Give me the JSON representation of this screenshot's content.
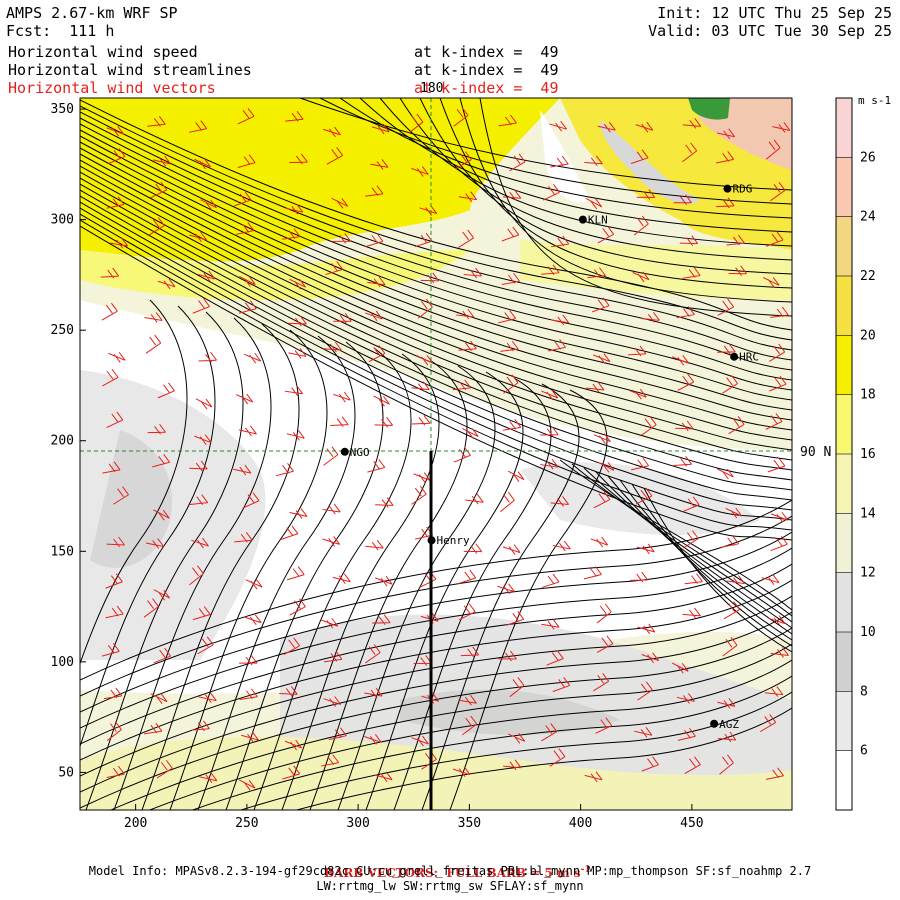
{
  "header": {
    "model": "AMPS 2.67-km WRF SP",
    "fcst": "Fcst:  111 h",
    "init": "Init: 12 UTC Thu 25 Sep 25",
    "valid": "Valid: 03 UTC Tue 30 Sep 25",
    "fields": [
      {
        "label": "Horizontal wind speed",
        "level": "at k-index =  49",
        "color": "#000000"
      },
      {
        "label": "Horizontal wind streamlines",
        "level": "at k-index =  49",
        "color": "#000000"
      },
      {
        "label": "Horizontal wind vectors",
        "level": "at k-index =  49",
        "color": "#e8201c"
      }
    ]
  },
  "map": {
    "x_ticks": [
      "200",
      "250",
      "300",
      "350",
      "400",
      "450"
    ],
    "y_ticks": [
      "350",
      "300",
      "250",
      "200",
      "150",
      "100",
      "50"
    ],
    "xlim": [
      175,
      495
    ],
    "ylim": [
      33,
      355
    ],
    "meridian_label": "180",
    "parallel_label": "90 N",
    "stations": [
      {
        "name": "RDG",
        "x": 466,
        "y": 314
      },
      {
        "name": "KLN",
        "x": 401,
        "y": 300
      },
      {
        "name": "HRC",
        "x": 469,
        "y": 238
      },
      {
        "name": "NGO",
        "x": 294,
        "y": 195
      },
      {
        "name": "Henry",
        "x": 333,
        "y": 155
      },
      {
        "name": "AGZ",
        "x": 460,
        "y": 72
      }
    ]
  },
  "colorbar": {
    "unit": "m s-1",
    "labels": [
      "26",
      "24",
      "22",
      "20",
      "18",
      "16",
      "14",
      "12",
      "10",
      "8",
      "6"
    ],
    "colors": [
      "#f9d4d4",
      "#f8c8b0",
      "#f3d680",
      "#f4e040",
      "#f6f000",
      "#f8f870",
      "#f6f6b4",
      "#f1f1d6",
      "#e2e2e2",
      "#d0d0d0",
      "#e9e9e9",
      "#ffffff"
    ]
  },
  "footer": {
    "barb": "BARB VECTORS:  FULL BARB = 5 m s",
    "barb_sup": "-1",
    "info1": "Model Info: MPASv8.2.3-194-gf29cd82c CU:cu_grell_freitas PBL:bl_mynn MP:mp_thompson SF:sf_noahmp 2.7",
    "info2": "LW:rrtmg_lw SW:rrtmg_sw SFLAY:sf_mynn"
  }
}
